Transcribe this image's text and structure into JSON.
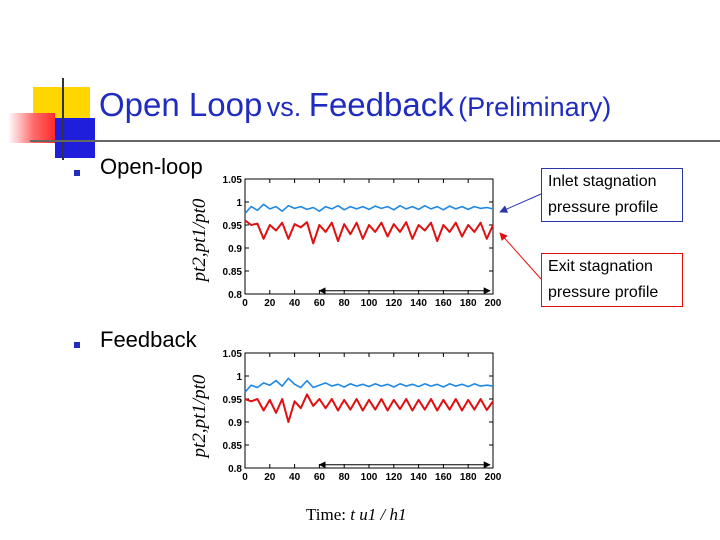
{
  "title": {
    "main": "Open Loop",
    "vs": "vs. ",
    "main2": "Feedback",
    "note": "(Preliminary)"
  },
  "bullets": [
    "Open-loop",
    "Feedback"
  ],
  "callouts": {
    "inlet": {
      "line1": "Inlet stagnation",
      "line2": "pressure profile"
    },
    "exit": {
      "line1": "Exit stagnation",
      "line2": "pressure profile"
    }
  },
  "xlabel": {
    "prefix": "Time: ",
    "expr": "t u1 / h1"
  },
  "colors": {
    "title": "#1f2cbf",
    "inlet": "#1e88e5",
    "exit": "#e01010",
    "callout_inlet_border": "#2a35a8",
    "callout_exit_border": "#e01010"
  },
  "chart_data": [
    {
      "type": "line",
      "ylabel": "pt2,pt1/pt0",
      "xlim": [
        0,
        200
      ],
      "ylim": [
        0.8,
        1.05
      ],
      "xticks": [
        "0",
        "20",
        "40",
        "60",
        "80",
        "100",
        "120",
        "140",
        "160",
        "180",
        "200"
      ],
      "yticks": [
        "1.05",
        "1",
        "0.95",
        "0.9",
        "0.85",
        "0.8"
      ],
      "annotation": {
        "type": "double-arrow",
        "y": 0.807,
        "x_range": [
          60,
          200
        ]
      },
      "series": [
        {
          "color": "#1e88e5",
          "x": [
            0,
            5,
            10,
            15,
            20,
            25,
            30,
            35,
            40,
            45,
            50,
            55,
            60,
            65,
            70,
            75,
            80,
            85,
            90,
            95,
            100,
            105,
            110,
            115,
            120,
            125,
            130,
            135,
            140,
            145,
            150,
            155,
            160,
            165,
            170,
            175,
            180,
            185,
            190,
            195,
            200
          ],
          "y": [
            0.975,
            0.99,
            0.982,
            0.995,
            0.985,
            0.99,
            0.98,
            0.992,
            0.986,
            0.99,
            0.984,
            0.988,
            0.98,
            0.99,
            0.985,
            0.992,
            0.983,
            0.99,
            0.985,
            0.99,
            0.984,
            0.991,
            0.986,
            0.99,
            0.983,
            0.992,
            0.985,
            0.99,
            0.984,
            0.992,
            0.985,
            0.99,
            0.983,
            0.991,
            0.985,
            0.99,
            0.984,
            0.99,
            0.986,
            0.988,
            0.985
          ]
        },
        {
          "color": "#e01010",
          "x": [
            0,
            5,
            10,
            15,
            20,
            25,
            30,
            35,
            40,
            45,
            50,
            55,
            60,
            65,
            70,
            75,
            80,
            85,
            90,
            95,
            100,
            105,
            110,
            115,
            120,
            125,
            130,
            135,
            140,
            145,
            150,
            155,
            160,
            165,
            170,
            175,
            180,
            185,
            190,
            195,
            200
          ],
          "y": [
            0.96,
            0.95,
            0.953,
            0.92,
            0.95,
            0.938,
            0.955,
            0.92,
            0.952,
            0.945,
            0.956,
            0.91,
            0.95,
            0.935,
            0.955,
            0.915,
            0.952,
            0.93,
            0.955,
            0.92,
            0.95,
            0.935,
            0.955,
            0.925,
            0.952,
            0.935,
            0.956,
            0.92,
            0.95,
            0.938,
            0.955,
            0.915,
            0.95,
            0.935,
            0.955,
            0.925,
            0.95,
            0.935,
            0.955,
            0.92,
            0.95
          ]
        }
      ]
    },
    {
      "type": "line",
      "ylabel": "pt2,pt1/pt0",
      "xlim": [
        0,
        200
      ],
      "ylim": [
        0.8,
        1.05
      ],
      "xticks": [
        "0",
        "20",
        "40",
        "60",
        "80",
        "100",
        "120",
        "140",
        "160",
        "180",
        "200"
      ],
      "yticks": [
        "1.05",
        "1",
        "0.95",
        "0.9",
        "0.85",
        "0.8"
      ],
      "annotation": {
        "type": "double-arrow",
        "y": 0.807,
        "x_range": [
          60,
          200
        ]
      },
      "series": [
        {
          "color": "#1e88e5",
          "x": [
            0,
            5,
            10,
            15,
            20,
            25,
            30,
            35,
            40,
            45,
            50,
            55,
            60,
            65,
            70,
            75,
            80,
            85,
            90,
            95,
            100,
            105,
            110,
            115,
            120,
            125,
            130,
            135,
            140,
            145,
            150,
            155,
            160,
            165,
            170,
            175,
            180,
            185,
            190,
            195,
            200
          ],
          "y": [
            0.965,
            0.98,
            0.975,
            0.985,
            0.98,
            0.99,
            0.978,
            0.995,
            0.982,
            0.975,
            0.99,
            0.975,
            0.98,
            0.985,
            0.978,
            0.982,
            0.976,
            0.983,
            0.978,
            0.982,
            0.977,
            0.983,
            0.978,
            0.982,
            0.976,
            0.983,
            0.978,
            0.982,
            0.977,
            0.983,
            0.978,
            0.982,
            0.976,
            0.983,
            0.978,
            0.982,
            0.977,
            0.983,
            0.978,
            0.98,
            0.978
          ]
        },
        {
          "color": "#e01010",
          "x": [
            0,
            5,
            10,
            15,
            20,
            25,
            30,
            35,
            40,
            45,
            50,
            55,
            60,
            65,
            70,
            75,
            80,
            85,
            90,
            95,
            100,
            105,
            110,
            115,
            120,
            125,
            130,
            135,
            140,
            145,
            150,
            155,
            160,
            165,
            170,
            175,
            180,
            185,
            190,
            195,
            200
          ],
          "y": [
            0.95,
            0.945,
            0.95,
            0.925,
            0.948,
            0.92,
            0.95,
            0.9,
            0.945,
            0.93,
            0.96,
            0.935,
            0.95,
            0.93,
            0.95,
            0.925,
            0.948,
            0.927,
            0.95,
            0.925,
            0.948,
            0.927,
            0.95,
            0.925,
            0.948,
            0.928,
            0.95,
            0.925,
            0.948,
            0.927,
            0.95,
            0.925,
            0.948,
            0.927,
            0.95,
            0.925,
            0.948,
            0.927,
            0.95,
            0.926,
            0.945
          ]
        }
      ]
    }
  ]
}
